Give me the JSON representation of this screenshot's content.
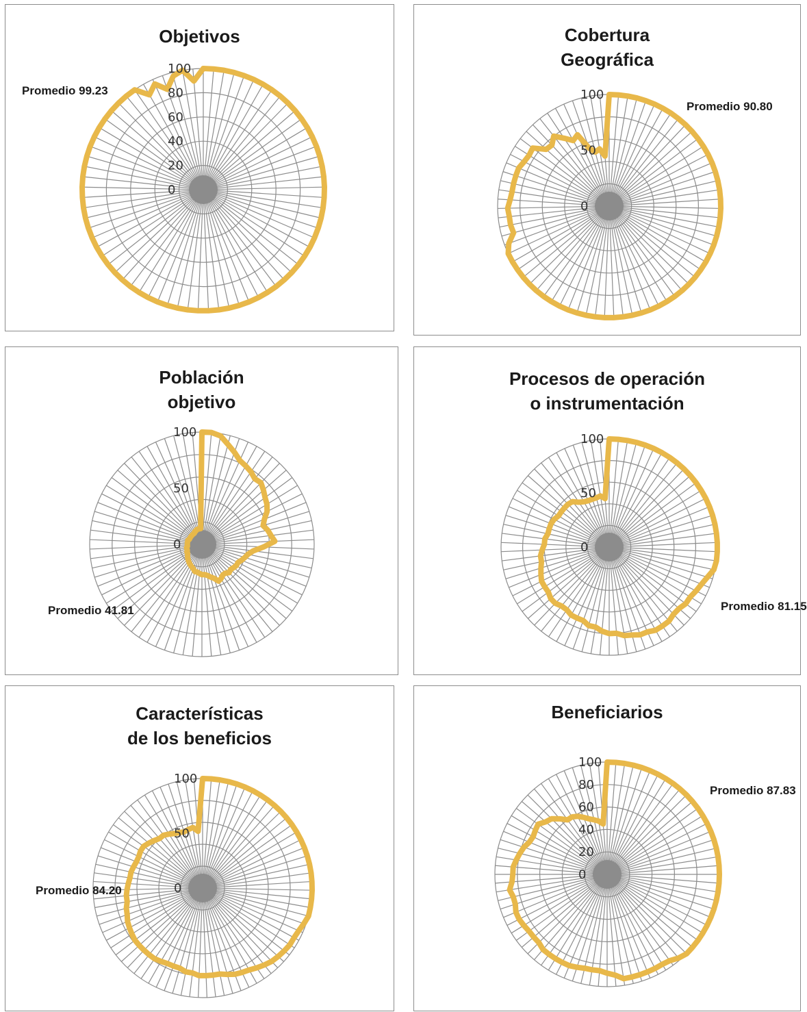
{
  "colors": {
    "series": "#e8b84a",
    "grid": "#8c8c8c"
  },
  "chart_data": [
    {
      "type": "radar",
      "title": "Objetivos",
      "rticks": [
        "0",
        "20",
        "40",
        "60",
        "80",
        "100"
      ],
      "rmax": 100,
      "annotation": "Promedio 99.23",
      "values": [
        100,
        100,
        100,
        100,
        100,
        100,
        100,
        100,
        100,
        100,
        100,
        100,
        100,
        100,
        100,
        100,
        100,
        100,
        100,
        100,
        100,
        100,
        100,
        100,
        100,
        100,
        100,
        100,
        100,
        100,
        100,
        100,
        100,
        100,
        100,
        100,
        100,
        100,
        100,
        100,
        100,
        100,
        100,
        100,
        100,
        100,
        100,
        100,
        100,
        100,
        100,
        100,
        100,
        100,
        100,
        100,
        100,
        100,
        100,
        100,
        100,
        100,
        100,
        100,
        100,
        100,
        100,
        90,
        96,
        88,
        97,
        100,
        90
      ]
    },
    {
      "type": "radar",
      "title": "Cobertura\nGeográfica",
      "rticks": [
        "0",
        "50",
        "100"
      ],
      "rmax": 100,
      "annotation": "Promedio\n90.80",
      "values": [
        100,
        100,
        100,
        100,
        100,
        100,
        100,
        100,
        100,
        100,
        100,
        100,
        100,
        100,
        100,
        100,
        100,
        100,
        100,
        100,
        100,
        100,
        100,
        100,
        100,
        100,
        100,
        100,
        100,
        100,
        100,
        100,
        100,
        100,
        100,
        100,
        100,
        100,
        100,
        100,
        100,
        100,
        100,
        100,
        100,
        100,
        100,
        100,
        100,
        100,
        100,
        100,
        96,
        89,
        90,
        90,
        91,
        89,
        88,
        88,
        88,
        88,
        86,
        85,
        86,
        76,
        75,
        80,
        73,
        67,
        70,
        55,
        50,
        52,
        45
      ]
    },
    {
      "type": "radar",
      "title": "Población\nobjetivo",
      "rticks": [
        "0",
        "50",
        "100"
      ],
      "rmax": 100,
      "annotation": "Promedio\n41.81",
      "values": [
        100,
        100,
        98,
        92,
        87,
        82,
        80,
        78,
        75,
        76,
        73,
        70,
        68,
        65,
        60,
        57,
        60,
        62,
        65,
        55,
        46,
        42,
        40,
        38,
        36,
        36,
        35,
        34,
        35,
        33,
        33,
        35,
        36,
        32,
        30,
        28,
        27,
        27,
        26,
        25,
        25,
        23,
        22,
        21,
        20,
        19,
        18,
        17,
        16,
        15,
        15,
        14,
        14,
        14,
        13,
        13,
        13,
        13,
        13,
        13,
        12,
        12,
        12,
        12,
        12,
        12,
        12,
        12,
        13,
        13,
        14,
        14,
        14,
        14
      ]
    },
    {
      "type": "radar",
      "title": "Procesos de operación\no instrumentación",
      "rticks": [
        "0",
        "50",
        "100"
      ],
      "rmax": 100,
      "annotation": "Promedio\n81.15",
      "values": [
        100,
        100,
        100,
        100,
        100,
        100,
        100,
        100,
        100,
        100,
        100,
        100,
        100,
        100,
        100,
        100,
        100,
        100,
        100,
        100,
        100,
        99,
        95,
        92,
        90,
        88,
        88,
        86,
        86,
        88,
        88,
        88,
        86,
        86,
        84,
        83,
        80,
        80,
        78,
        75,
        75,
        72,
        72,
        72,
        70,
        70,
        72,
        72,
        70,
        70,
        70,
        68,
        66,
        64,
        64,
        62,
        60,
        60,
        58,
        58,
        58,
        57,
        55,
        55,
        55,
        55,
        54,
        50,
        48,
        47,
        47,
        47,
        48,
        45
      ]
    },
    {
      "type": "radar",
      "title": "Características\nde los beneficios",
      "rticks": [
        "0",
        "50",
        "100"
      ],
      "rmax": 100,
      "annotation": "Promedio\n84.20",
      "values": [
        100,
        100,
        100,
        100,
        100,
        100,
        100,
        100,
        100,
        100,
        100,
        100,
        100,
        100,
        100,
        100,
        100,
        100,
        100,
        100,
        100,
        100,
        100,
        100,
        98,
        96,
        95,
        95,
        94,
        93,
        92,
        90,
        88,
        86,
        85,
        84,
        82,
        80,
        80,
        80,
        80,
        78,
        78,
        76,
        76,
        76,
        77,
        78,
        78,
        78,
        78,
        78,
        77,
        76,
        75,
        73,
        72,
        70,
        70,
        69,
        68,
        67,
        67,
        66,
        65,
        65,
        66,
        66,
        64,
        62,
        60,
        60,
        58,
        56,
        55,
        54,
        55,
        56,
        52
      ]
    },
    {
      "type": "radar",
      "title": "Beneficiarios",
      "rticks": [
        "0",
        "20",
        "40",
        "60",
        "80",
        "100"
      ],
      "rmax": 100,
      "annotation": "Promedio\n87.83",
      "values": [
        100,
        100,
        100,
        100,
        100,
        100,
        100,
        100,
        100,
        100,
        100,
        100,
        100,
        100,
        100,
        100,
        100,
        100,
        100,
        100,
        100,
        100,
        100,
        100,
        100,
        100,
        100,
        100,
        100,
        100,
        100,
        98,
        95,
        94,
        94,
        94,
        94,
        94,
        94,
        90,
        88,
        86,
        86,
        86,
        87,
        88,
        88,
        88,
        88,
        88,
        86,
        86,
        86,
        87,
        88,
        88,
        86,
        86,
        88,
        85,
        84,
        84,
        82,
        80,
        78,
        75,
        74,
        75,
        76,
        72,
        70,
        65,
        60,
        60,
        58,
        55,
        52,
        50,
        48,
        45
      ]
    }
  ]
}
